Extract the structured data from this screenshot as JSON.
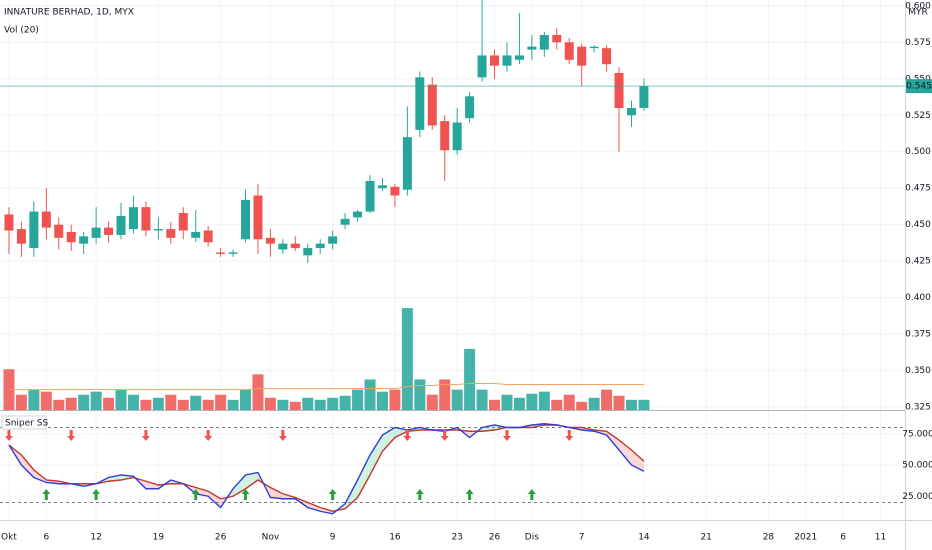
{
  "chart_data": [
    {
      "type": "candlestick",
      "title": "INNATURE BERHAD, 1D, MYX",
      "ylabel": "MYR",
      "open": [
        0.457,
        0.447,
        0.434,
        0.459,
        0.45,
        0.445,
        0.437,
        0.441,
        0.448,
        0.443,
        0.447,
        0.462,
        0.446,
        0.447,
        0.458,
        0.441,
        0.446,
        0.431,
        0.43,
        0.44,
        0.47,
        0.441,
        0.433,
        0.437,
        0.429,
        0.434,
        0.437,
        0.45,
        0.455,
        0.459,
        0.475,
        0.476,
        0.474,
        0.515,
        0.546,
        0.521,
        0.501,
        0.523,
        0.551,
        0.566,
        0.559,
        0.563,
        0.57,
        0.57,
        0.58,
        0.575,
        0.572,
        0.571,
        0.571,
        0.554,
        0.525,
        0.53
      ],
      "high": [
        0.462,
        0.452,
        0.466,
        0.475,
        0.455,
        0.45,
        0.445,
        0.462,
        0.452,
        0.465,
        0.47,
        0.466,
        0.455,
        0.452,
        0.462,
        0.46,
        0.449,
        0.434,
        0.433,
        0.474,
        0.478,
        0.447,
        0.44,
        0.442,
        0.437,
        0.44,
        0.446,
        0.458,
        0.46,
        0.484,
        0.482,
        0.478,
        0.531,
        0.555,
        0.551,
        0.525,
        0.53,
        0.541,
        0.604,
        0.57,
        0.575,
        0.595,
        0.58,
        0.582,
        0.585,
        0.578,
        0.574,
        0.573,
        0.573,
        0.558,
        0.535,
        0.55
      ],
      "low": [
        0.43,
        0.428,
        0.428,
        0.44,
        0.433,
        0.432,
        0.43,
        0.437,
        0.438,
        0.44,
        0.444,
        0.442,
        0.44,
        0.437,
        0.44,
        0.438,
        0.435,
        0.428,
        0.428,
        0.438,
        0.43,
        0.428,
        0.43,
        0.432,
        0.424,
        0.43,
        0.433,
        0.447,
        0.452,
        0.458,
        0.473,
        0.462,
        0.47,
        0.51,
        0.515,
        0.48,
        0.498,
        0.52,
        0.548,
        0.55,
        0.555,
        0.56,
        0.563,
        0.565,
        0.57,
        0.56,
        0.545,
        0.568,
        0.555,
        0.5,
        0.517,
        0.528
      ],
      "close": [
        0.446,
        0.437,
        0.459,
        0.448,
        0.441,
        0.438,
        0.442,
        0.448,
        0.443,
        0.456,
        0.462,
        0.446,
        0.447,
        0.441,
        0.446,
        0.445,
        0.438,
        0.43,
        0.431,
        0.467,
        0.44,
        0.437,
        0.437,
        0.434,
        0.434,
        0.437,
        0.442,
        0.454,
        0.459,
        0.48,
        0.477,
        0.47,
        0.51,
        0.551,
        0.518,
        0.501,
        0.52,
        0.538,
        0.566,
        0.559,
        0.566,
        0.566,
        0.572,
        0.58,
        0.575,
        0.563,
        0.559,
        0.572,
        0.56,
        0.53,
        0.53,
        0.545
      ],
      "last_label": "0.545",
      "up_color": "#26a69a",
      "down_color": "#ef5350",
      "xlim": [
        -0.72,
        71.97
      ],
      "ylim": [
        0.323,
        0.604
      ],
      "yticks": [
        {
          "value": 0.6,
          "label": "0.600"
        },
        0.575,
        {
          "value": 0.55,
          "label": "0.550"
        },
        0.525,
        {
          "value": 0.5,
          "label": "0.500"
        },
        0.475,
        {
          "value": 0.45,
          "label": "0.450"
        },
        0.425,
        {
          "value": 0.4,
          "label": "0.400"
        },
        0.375,
        {
          "value": 0.35,
          "label": "0.350"
        },
        0.325
      ],
      "grid": true
    },
    {
      "type": "bar",
      "title": "Vol (20)",
      "values": [
        40,
        15,
        20,
        18,
        10,
        12,
        15,
        18,
        12,
        20,
        15,
        10,
        12,
        15,
        10,
        14,
        10,
        15,
        10,
        20,
        35,
        12,
        10,
        8,
        12,
        10,
        12,
        14,
        20,
        30,
        18,
        20,
        100,
        30,
        15,
        30,
        20,
        60,
        20,
        10,
        15,
        12,
        16,
        18,
        10,
        15,
        8,
        12,
        20,
        14,
        10,
        10
      ],
      "ma": {
        "color": "#f7a35c",
        "values": [
          20,
          20,
          20,
          20,
          20,
          20,
          20,
          20,
          20,
          20,
          20,
          20,
          20,
          20,
          20,
          20,
          20,
          20,
          20,
          20,
          21,
          21,
          21,
          21,
          21,
          21,
          21,
          21,
          21,
          21,
          21,
          21,
          23,
          24,
          24,
          25,
          25,
          26,
          26,
          26,
          25,
          25,
          25,
          25,
          25,
          25,
          25,
          25,
          25,
          25,
          25,
          25
        ]
      },
      "xlim": [
        -0.72,
        71.97
      ],
      "ylim": [
        0,
        108
      ]
    },
    {
      "type": "line",
      "title": "Sniper SS",
      "series": [
        {
          "color": "#2f3fd6",
          "values": [
            66,
            50,
            40,
            36,
            35,
            35,
            33,
            35,
            40,
            42,
            41,
            31,
            31,
            38,
            35,
            27,
            25,
            16,
            31,
            42,
            44,
            24,
            23,
            23,
            16,
            13,
            11,
            19,
            38,
            58,
            74,
            80,
            78,
            80,
            78,
            77,
            80,
            72,
            80,
            82,
            80,
            80,
            82,
            83,
            82,
            80,
            78,
            77,
            74,
            62,
            50,
            45
          ]
        },
        {
          "color": "#c0392b",
          "values": [
            66,
            58,
            46,
            38,
            37,
            35,
            35,
            35,
            37,
            38,
            40,
            37,
            34,
            35,
            35,
            32,
            29,
            23,
            25,
            31,
            38,
            32,
            27,
            24,
            20,
            16,
            13,
            15,
            24,
            42,
            61,
            72,
            77,
            78,
            78,
            78,
            78,
            77,
            77,
            78,
            80,
            80,
            80,
            82,
            82,
            80,
            80,
            78,
            77,
            70,
            62,
            53
          ]
        }
      ],
      "sell_signals": [
        0,
        5,
        11,
        16,
        22,
        32,
        35,
        40,
        45
      ],
      "buy_signals": [
        3,
        7,
        15,
        19,
        26,
        33,
        37,
        42
      ],
      "hlines": [
        80,
        20
      ],
      "xlim": [
        -0.72,
        71.97
      ],
      "ylim": [
        6,
        94
      ],
      "yticks": [
        {
          "value": 75,
          "label": "75.000"
        },
        {
          "value": 50,
          "label": "50.000"
        },
        {
          "value": 25,
          "label": "25.000"
        }
      ],
      "xticks": [
        {
          "value": 0,
          "label": "Okt"
        },
        {
          "value": 3,
          "label": "6"
        },
        {
          "value": 7,
          "label": "12"
        },
        {
          "value": 12,
          "label": "19"
        },
        {
          "value": 17,
          "label": "26"
        },
        {
          "value": 21,
          "label": "Nov"
        },
        {
          "value": 26,
          "label": "9"
        },
        {
          "value": 31,
          "label": "16"
        },
        {
          "value": 36,
          "label": "23"
        },
        {
          "value": 39,
          "label": "26"
        },
        {
          "value": 42,
          "label": "Dis"
        },
        {
          "value": 46,
          "label": "7"
        },
        {
          "value": 51,
          "label": "14"
        },
        {
          "value": 56,
          "label": "21"
        },
        {
          "value": 61,
          "label": "28"
        },
        {
          "value": 64,
          "label": "2021"
        },
        {
          "value": 67,
          "label": "6"
        },
        {
          "value": 70,
          "label": "11"
        }
      ],
      "grid": true
    }
  ]
}
